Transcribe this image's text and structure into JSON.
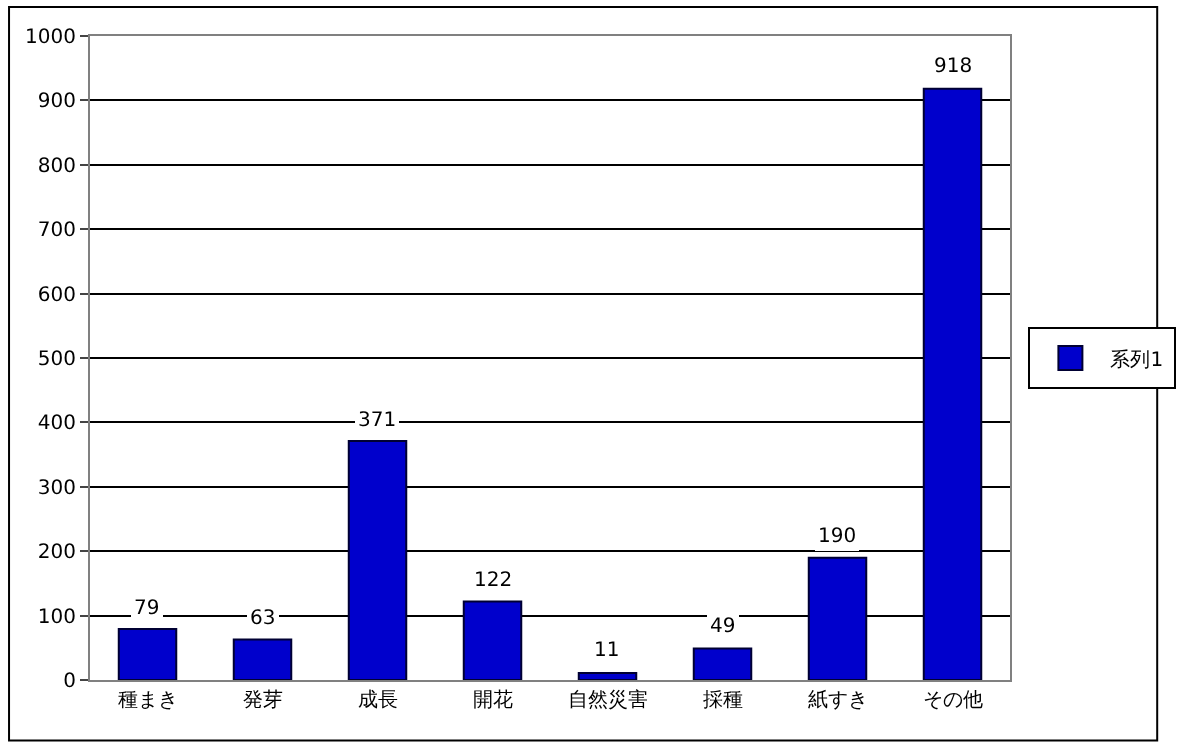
{
  "chart_data": {
    "type": "bar",
    "categories": [
      "種まき",
      "発芽",
      "成長",
      "開花",
      "自然災害",
      "採種",
      "紙すき",
      "その他"
    ],
    "series": [
      {
        "name": "系列1",
        "color": "#0000cc",
        "values": [
          79,
          63,
          371,
          122,
          11,
          49,
          190,
          918
        ]
      }
    ],
    "ylim": [
      0,
      1000
    ],
    "yticks": [
      0,
      100,
      200,
      300,
      400,
      500,
      600,
      700,
      800,
      900,
      1000
    ],
    "grid": "y",
    "legend": "right",
    "data_labels": true
  }
}
